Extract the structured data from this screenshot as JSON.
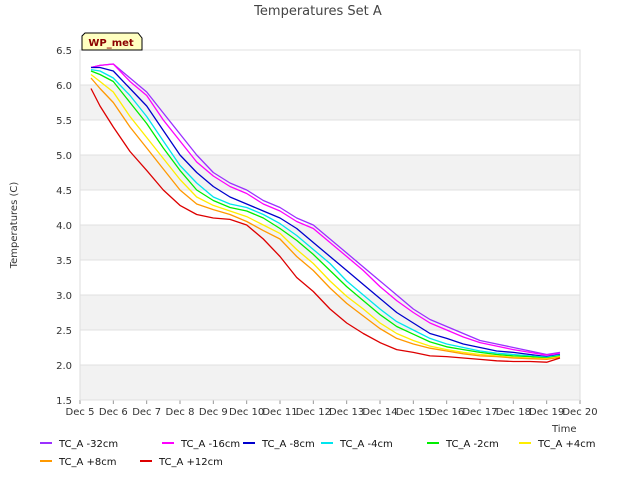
{
  "chart_data": {
    "type": "line",
    "title": "Temperatures Set A",
    "xlabel": "Time",
    "ylabel": "Temperatures (C)",
    "xlim": [
      5,
      20
    ],
    "ylim": [
      1.5,
      6.5
    ],
    "x_ticks": [
      5,
      6,
      7,
      8,
      9,
      10,
      11,
      12,
      13,
      14,
      15,
      16,
      17,
      18,
      19,
      20
    ],
    "x_tick_labels": [
      "Dec 5",
      "Dec 6",
      "Dec 7",
      "Dec 8",
      "Dec 9",
      "Dec 10",
      "Dec 11",
      "Dec 12",
      "Dec 13",
      "Dec 14",
      "Dec 15",
      "Dec 16",
      "Dec 17",
      "Dec 18",
      "Dec 19",
      "Dec 20"
    ],
    "y_ticks": [
      1.5,
      2.0,
      2.5,
      3.0,
      3.5,
      4.0,
      4.5,
      5.0,
      5.5,
      6.0,
      6.5
    ],
    "y_tick_labels": [
      "1.5",
      "2.0",
      "2.5",
      "3.0",
      "3.5",
      "4.0",
      "4.5",
      "5.0",
      "5.5",
      "6.0",
      "6.5"
    ],
    "badge": "WP_met",
    "background_bands": true,
    "x": [
      5.33,
      5.6,
      6.0,
      6.5,
      7.0,
      7.5,
      8.0,
      8.5,
      9.0,
      9.5,
      10.0,
      10.5,
      11.0,
      11.5,
      12.0,
      12.5,
      13.0,
      13.5,
      14.0,
      14.5,
      15.0,
      15.5,
      16.0,
      16.5,
      17.0,
      17.5,
      18.0,
      18.5,
      19.0,
      19.4
    ],
    "series": [
      {
        "name": "TC_A -32cm",
        "color": "#9b30ff",
        "values": [
          6.25,
          6.28,
          6.3,
          6.1,
          5.9,
          5.6,
          5.3,
          5.0,
          4.75,
          4.6,
          4.5,
          4.35,
          4.25,
          4.1,
          4.0,
          3.8,
          3.6,
          3.4,
          3.2,
          3.0,
          2.8,
          2.65,
          2.55,
          2.45,
          2.35,
          2.3,
          2.25,
          2.2,
          2.15,
          2.18
        ]
      },
      {
        "name": "TC_A -16cm",
        "color": "#ff00ff",
        "values": [
          6.25,
          6.28,
          6.3,
          6.05,
          5.85,
          5.5,
          5.2,
          4.9,
          4.7,
          4.55,
          4.45,
          4.3,
          4.2,
          4.05,
          3.95,
          3.75,
          3.55,
          3.35,
          3.12,
          2.92,
          2.75,
          2.6,
          2.5,
          2.4,
          2.32,
          2.27,
          2.22,
          2.18,
          2.14,
          2.17
        ]
      },
      {
        "name": "TC_A -8cm",
        "color": "#0000cd",
        "values": [
          6.25,
          6.25,
          6.2,
          5.95,
          5.7,
          5.35,
          5.0,
          4.75,
          4.55,
          4.4,
          4.3,
          4.2,
          4.1,
          3.95,
          3.75,
          3.55,
          3.35,
          3.15,
          2.95,
          2.75,
          2.6,
          2.45,
          2.38,
          2.3,
          2.25,
          2.2,
          2.18,
          2.15,
          2.12,
          2.15
        ]
      },
      {
        "name": "TC_A -4cm",
        "color": "#00e5ee",
        "values": [
          6.22,
          6.2,
          6.1,
          5.85,
          5.55,
          5.2,
          4.85,
          4.6,
          4.4,
          4.3,
          4.25,
          4.15,
          4.02,
          3.85,
          3.65,
          3.45,
          3.2,
          3.0,
          2.8,
          2.62,
          2.5,
          2.38,
          2.3,
          2.25,
          2.2,
          2.17,
          2.15,
          2.13,
          2.11,
          2.14
        ]
      },
      {
        "name": "TC_A -2cm",
        "color": "#00ee00",
        "values": [
          6.2,
          6.15,
          6.05,
          5.75,
          5.45,
          5.1,
          4.78,
          4.5,
          4.35,
          4.25,
          4.2,
          4.1,
          3.95,
          3.78,
          3.58,
          3.35,
          3.12,
          2.92,
          2.72,
          2.55,
          2.44,
          2.33,
          2.26,
          2.22,
          2.18,
          2.15,
          2.13,
          2.12,
          2.1,
          2.13
        ]
      },
      {
        "name": "TC_A +4cm",
        "color": "#ffee00",
        "values": [
          6.15,
          6.05,
          5.9,
          5.55,
          5.25,
          4.95,
          4.65,
          4.4,
          4.28,
          4.2,
          4.12,
          4.0,
          3.88,
          3.65,
          3.45,
          3.2,
          2.98,
          2.8,
          2.6,
          2.45,
          2.35,
          2.27,
          2.22,
          2.18,
          2.15,
          2.13,
          2.11,
          2.1,
          2.09,
          2.12
        ]
      },
      {
        "name": "TC_A +8cm",
        "color": "#ff9900",
        "values": [
          6.1,
          5.95,
          5.75,
          5.4,
          5.1,
          4.8,
          4.5,
          4.3,
          4.22,
          4.15,
          4.05,
          3.92,
          3.8,
          3.55,
          3.35,
          3.1,
          2.88,
          2.7,
          2.52,
          2.38,
          2.3,
          2.24,
          2.2,
          2.16,
          2.13,
          2.12,
          2.1,
          2.09,
          2.08,
          2.11
        ]
      },
      {
        "name": "TC_A +12cm",
        "color": "#dd0000",
        "values": [
          5.95,
          5.7,
          5.4,
          5.05,
          4.78,
          4.5,
          4.28,
          4.15,
          4.1,
          4.08,
          4.0,
          3.8,
          3.55,
          3.25,
          3.05,
          2.8,
          2.6,
          2.45,
          2.32,
          2.22,
          2.18,
          2.13,
          2.12,
          2.1,
          2.08,
          2.06,
          2.05,
          2.05,
          2.04,
          2.1
        ]
      }
    ]
  }
}
